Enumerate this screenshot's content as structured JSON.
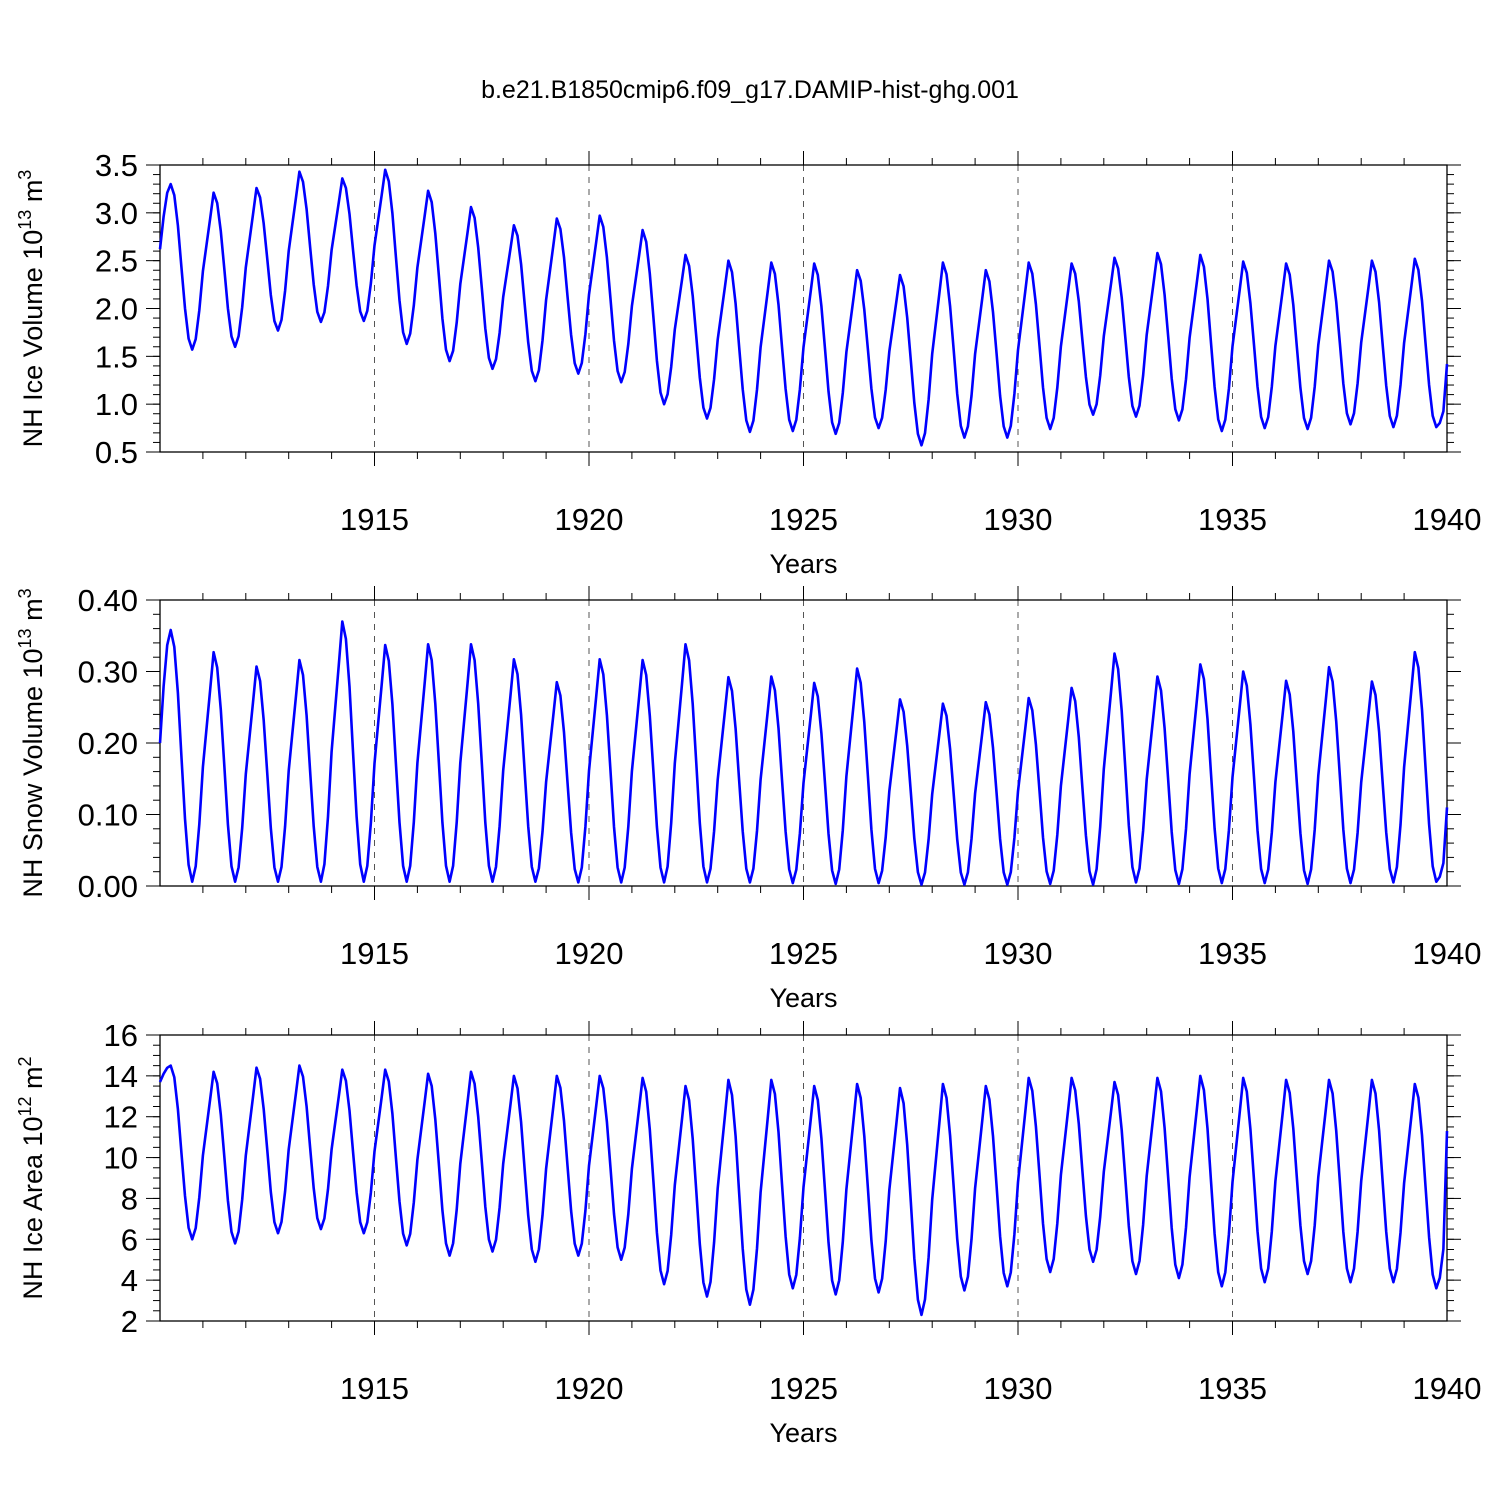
{
  "title": "b.e21.B1850cmip6.f09_g17.DAMIP-hist-ghg.001",
  "colors": {
    "line": "#0000ff",
    "axes": "#000000",
    "grid": "#555555"
  },
  "chart_data": [
    {
      "type": "line",
      "name": "ice-volume",
      "ylabel": "NH Ice Volume 10",
      "ylabel_exp": "13",
      "ylabel_unit": "m",
      "ylabel_unit_exp": "3",
      "xlabel": "Years",
      "xlim": [
        1910,
        1940
      ],
      "ylim": [
        0.5,
        3.5
      ],
      "yticks": [
        "0.5",
        "1.0",
        "1.5",
        "2.0",
        "2.5",
        "3.0",
        "3.5"
      ],
      "yminor": 0.1,
      "xticks": [
        "1915",
        "1920",
        "1925",
        "1930",
        "1935",
        "1940"
      ],
      "series": [
        {
          "name": "NH Ice Volume",
          "start_year": 1910,
          "peaks": [
            3.3,
            3.21,
            3.26,
            3.43,
            3.36,
            3.45,
            3.23,
            3.06,
            2.87,
            2.94,
            2.97,
            2.82,
            2.56,
            2.5,
            2.48,
            2.47,
            2.4,
            2.35,
            2.48,
            2.4,
            2.48,
            2.47,
            2.53,
            2.58,
            2.56,
            2.49,
            2.47,
            2.5,
            2.5,
            2.52
          ],
          "troughs": [
            1.57,
            1.6,
            1.77,
            1.86,
            1.87,
            1.63,
            1.45,
            1.37,
            1.24,
            1.32,
            1.23,
            1.0,
            0.85,
            0.71,
            0.72,
            0.69,
            0.75,
            0.57,
            0.65,
            0.65,
            0.74,
            0.89,
            0.87,
            0.83,
            0.72,
            0.75,
            0.74,
            0.79,
            0.76,
            0.76
          ],
          "start_value": 2.62,
          "end_value": 1.42
        }
      ]
    },
    {
      "type": "line",
      "name": "snow-volume",
      "ylabel": "NH Snow Volume 10",
      "ylabel_exp": "13",
      "ylabel_unit": "m",
      "ylabel_unit_exp": "3",
      "xlabel": "Years",
      "xlim": [
        1910,
        1940
      ],
      "ylim": [
        0.0,
        0.4
      ],
      "yticks": [
        "0.00",
        "0.10",
        "0.20",
        "0.30",
        "0.40"
      ],
      "yminor": 0.02,
      "xticks": [
        "1915",
        "1920",
        "1925",
        "1930",
        "1935",
        "1940"
      ],
      "series": [
        {
          "name": "NH Snow Volume",
          "start_year": 1910,
          "peaks": [
            0.358,
            0.327,
            0.307,
            0.316,
            0.37,
            0.337,
            0.338,
            0.338,
            0.317,
            0.285,
            0.317,
            0.316,
            0.338,
            0.292,
            0.293,
            0.284,
            0.304,
            0.261,
            0.255,
            0.257,
            0.263,
            0.277,
            0.325,
            0.293,
            0.31,
            0.3,
            0.287,
            0.306,
            0.286,
            0.327
          ],
          "troughs": [
            0.006,
            0.006,
            0.006,
            0.006,
            0.006,
            0.006,
            0.006,
            0.006,
            0.006,
            0.005,
            0.005,
            0.005,
            0.005,
            0.005,
            0.004,
            0.003,
            0.004,
            0.002,
            0.002,
            0.002,
            0.003,
            0.002,
            0.005,
            0.003,
            0.004,
            0.004,
            0.003,
            0.004,
            0.005,
            0.006
          ],
          "start_value": 0.2,
          "end_value": 0.11
        }
      ]
    },
    {
      "type": "line",
      "name": "ice-area",
      "ylabel": "NH Ice Area 10",
      "ylabel_exp": "12",
      "ylabel_unit": "m",
      "ylabel_unit_exp": "2",
      "xlabel": "Years",
      "xlim": [
        1910,
        1940
      ],
      "ylim": [
        2,
        16
      ],
      "yticks": [
        "2",
        "4",
        "6",
        "8",
        "10",
        "12",
        "14",
        "16"
      ],
      "yminor": 0.5,
      "xticks": [
        "1915",
        "1920",
        "1925",
        "1930",
        "1935",
        "1940"
      ],
      "series": [
        {
          "name": "NH Ice Area",
          "start_year": 1910,
          "peaks": [
            14.5,
            14.2,
            14.4,
            14.5,
            14.3,
            14.3,
            14.1,
            14.2,
            14.0,
            14.0,
            14.0,
            13.9,
            13.5,
            13.8,
            13.8,
            13.5,
            13.6,
            13.4,
            13.6,
            13.5,
            13.9,
            13.9,
            13.7,
            13.9,
            14.0,
            13.9,
            13.8,
            13.8,
            13.8,
            13.6
          ],
          "troughs": [
            6.0,
            5.8,
            6.3,
            6.5,
            6.3,
            5.7,
            5.2,
            5.4,
            4.9,
            5.2,
            5.0,
            3.8,
            3.2,
            2.8,
            3.6,
            3.3,
            3.4,
            2.3,
            3.5,
            3.7,
            4.4,
            4.9,
            4.3,
            4.1,
            3.7,
            3.9,
            4.3,
            3.9,
            3.9,
            3.6
          ],
          "start_value": 13.7,
          "end_value": 11.3
        }
      ]
    }
  ]
}
